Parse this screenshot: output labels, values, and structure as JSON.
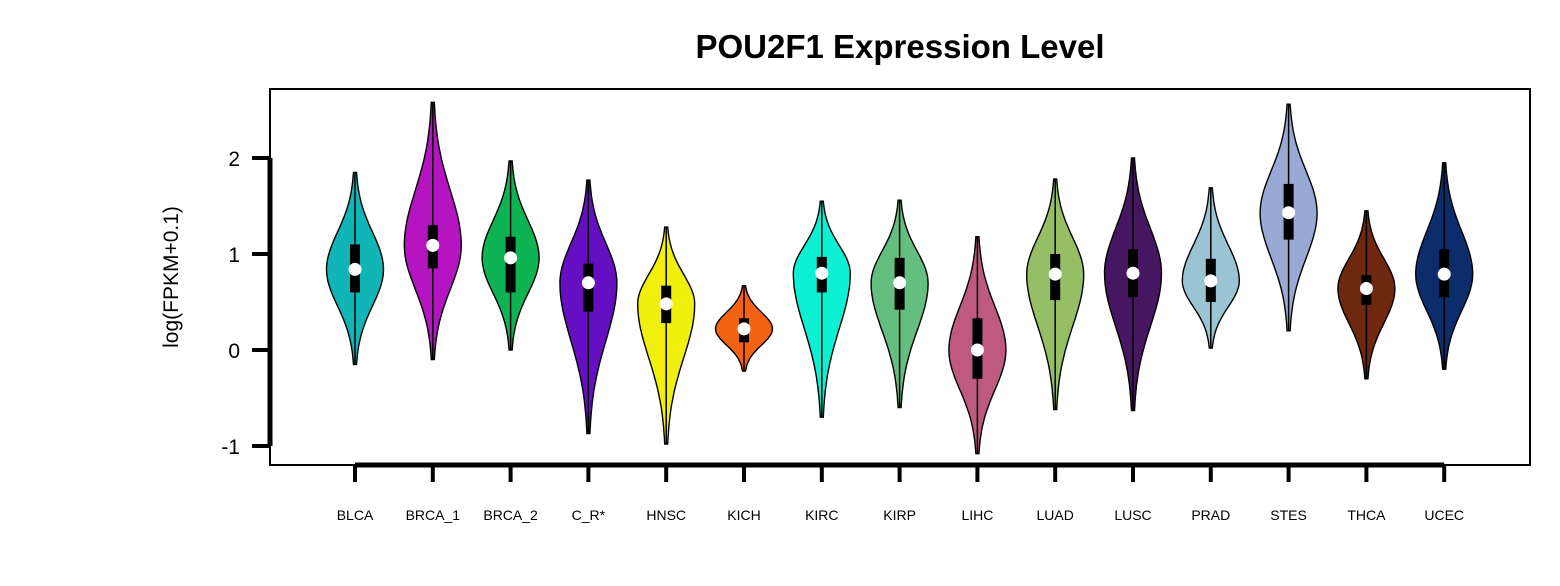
{
  "chart_data": {
    "type": "violin",
    "title": "POU2F1 Expression Level",
    "ylabel": "log(FPKM+0.1)",
    "xlabel": "",
    "ylim": [
      -1.2,
      2.7
    ],
    "yticks": [
      -1,
      0,
      1,
      2
    ],
    "grid": false,
    "legend": "none",
    "categories": [
      "BLCA",
      "BRCA_1",
      "BRCA_2",
      "C_R*",
      "HNSC",
      "KICH",
      "KIRC",
      "KIRP",
      "LIHC",
      "LUAD",
      "LUSC",
      "PRAD",
      "STES",
      "THCA",
      "UCEC"
    ],
    "series": [
      {
        "category": "BLCA",
        "color": "#12B5B5",
        "min": -0.15,
        "max": 1.85,
        "q1": 0.6,
        "q3": 1.1,
        "median": 0.84,
        "mode": 0.84,
        "width": 0.82
      },
      {
        "category": "BRCA_1",
        "color": "#B514C1",
        "min": -0.1,
        "max": 2.58,
        "q1": 0.85,
        "q3": 1.3,
        "median": 1.09,
        "mode": 1.09,
        "width": 0.82
      },
      {
        "category": "BRCA_2",
        "color": "#0EB454",
        "min": 0.0,
        "max": 1.97,
        "q1": 0.6,
        "q3": 1.18,
        "median": 0.96,
        "mode": 0.96,
        "width": 0.82
      },
      {
        "category": "C_R*",
        "color": "#6410C2",
        "min": -0.87,
        "max": 1.77,
        "q1": 0.4,
        "q3": 0.9,
        "median": 0.7,
        "mode": 0.7,
        "width": 0.82
      },
      {
        "category": "HNSC",
        "color": "#F0F00C",
        "min": -0.98,
        "max": 1.28,
        "q1": 0.28,
        "q3": 0.67,
        "median": 0.48,
        "mode": 0.48,
        "width": 0.82
      },
      {
        "category": "KICH",
        "color": "#F46214",
        "min": -0.22,
        "max": 0.67,
        "q1": 0.08,
        "q3": 0.33,
        "median": 0.22,
        "mode": 0.22,
        "width": 0.82
      },
      {
        "category": "KIRC",
        "color": "#0CF0D4",
        "min": -0.7,
        "max": 1.55,
        "q1": 0.6,
        "q3": 0.97,
        "median": 0.8,
        "mode": 0.8,
        "width": 0.82
      },
      {
        "category": "KIRP",
        "color": "#64BE80",
        "min": -0.6,
        "max": 1.56,
        "q1": 0.42,
        "q3": 0.96,
        "median": 0.7,
        "mode": 0.7,
        "width": 0.82
      },
      {
        "category": "LIHC",
        "color": "#BE5A80",
        "min": -1.08,
        "max": 1.18,
        "q1": -0.3,
        "q3": 0.33,
        "median": 0.0,
        "mode": 0.0,
        "width": 0.82
      },
      {
        "category": "LUAD",
        "color": "#96BE64",
        "min": -0.62,
        "max": 1.78,
        "q1": 0.52,
        "q3": 1.0,
        "median": 0.79,
        "mode": 0.79,
        "width": 0.82
      },
      {
        "category": "LUSC",
        "color": "#461760",
        "min": -0.63,
        "max": 2.0,
        "q1": 0.55,
        "q3": 1.05,
        "median": 0.8,
        "mode": 0.8,
        "width": 0.82
      },
      {
        "category": "PRAD",
        "color": "#9AC3D4",
        "min": 0.02,
        "max": 1.69,
        "q1": 0.5,
        "q3": 0.95,
        "median": 0.72,
        "mode": 0.72,
        "width": 0.82
      },
      {
        "category": "STES",
        "color": "#98A9D4",
        "min": 0.2,
        "max": 2.56,
        "q1": 1.15,
        "q3": 1.73,
        "median": 1.43,
        "mode": 1.43,
        "width": 0.82
      },
      {
        "category": "THCA",
        "color": "#6E2810",
        "min": -0.3,
        "max": 1.45,
        "q1": 0.47,
        "q3": 0.78,
        "median": 0.64,
        "mode": 0.64,
        "width": 0.82
      },
      {
        "category": "UCEC",
        "color": "#0C2C6C",
        "min": -0.2,
        "max": 1.95,
        "q1": 0.55,
        "q3": 1.05,
        "median": 0.79,
        "mode": 0.79,
        "width": 0.82
      }
    ]
  }
}
